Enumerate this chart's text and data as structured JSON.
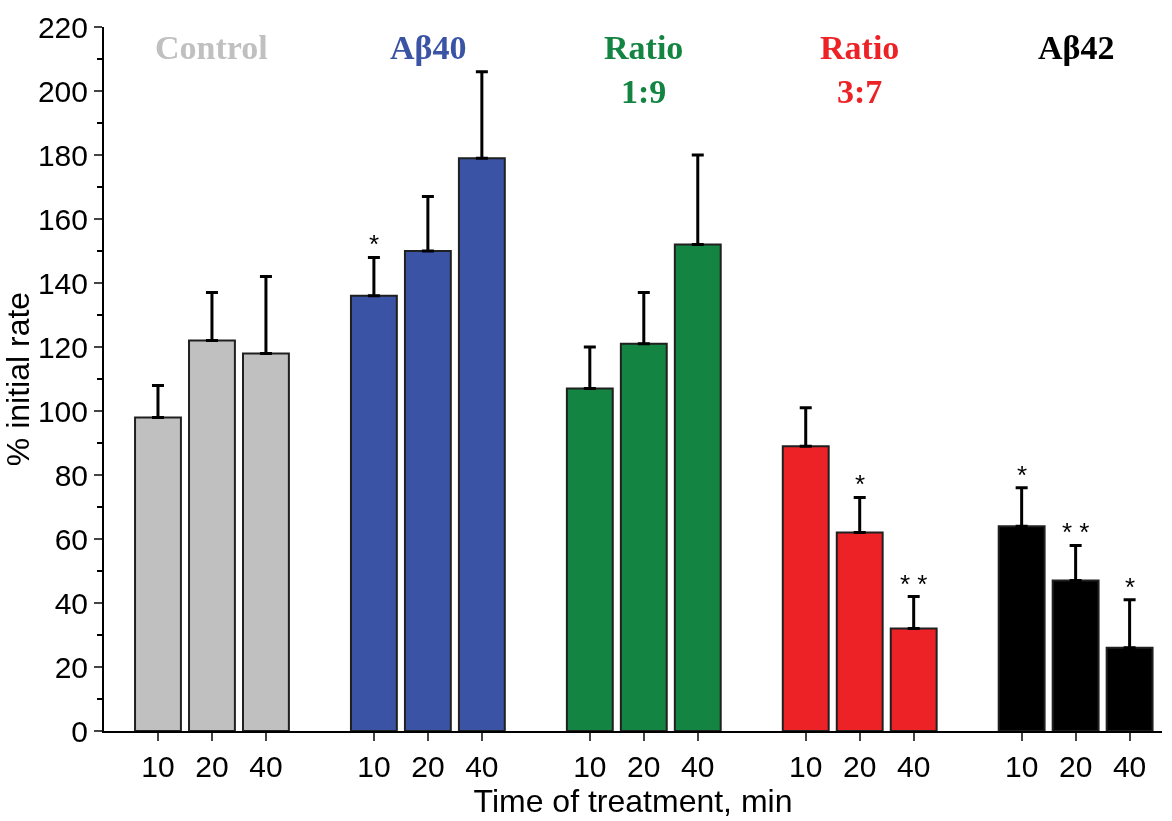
{
  "chart_data": {
    "type": "bar",
    "xlabel": "Time of treatment, min",
    "ylabel": "% initial rate",
    "categories": [
      "10",
      "20",
      "40",
      null,
      "10",
      "20",
      "40",
      null,
      "10",
      "20",
      "40",
      null,
      "10",
      "20",
      "40",
      null,
      "10",
      "20",
      "40"
    ],
    "series": [
      {
        "name": "Control",
        "color": "#c0c0c0",
        "values": [
          98,
          122,
          118,
          null,
          null,
          null,
          null,
          null,
          null,
          null,
          null,
          null,
          null,
          null,
          null,
          null,
          null,
          null,
          null
        ],
        "errors": [
          [
            98,
            108
          ],
          [
            122,
            137
          ],
          [
            118,
            142
          ],
          null,
          null,
          null,
          null,
          null,
          null,
          null,
          null,
          null,
          null,
          null,
          null,
          null,
          null,
          null,
          null
        ],
        "value_labels": [
          null,
          null,
          null,
          null,
          null,
          null,
          null,
          null,
          null,
          null,
          null,
          null,
          null,
          null,
          null,
          null,
          null,
          null,
          null
        ]
      },
      {
        "name": "Aβ40",
        "color": "#3a53a4",
        "values": [
          null,
          null,
          null,
          null,
          136,
          150,
          179,
          null,
          null,
          null,
          null,
          null,
          null,
          null,
          null,
          null,
          null,
          null,
          null
        ],
        "errors": [
          null,
          null,
          null,
          null,
          [
            136,
            148
          ],
          [
            150,
            167
          ],
          [
            179,
            206
          ],
          null,
          null,
          null,
          null,
          null,
          null,
          null,
          null,
          null,
          null,
          null,
          null
        ],
        "value_labels": [
          null,
          null,
          null,
          null,
          "*",
          null,
          null,
          null,
          null,
          null,
          null,
          null,
          null,
          null,
          null,
          null,
          null,
          null,
          null
        ]
      },
      {
        "name": "Ratio\n1:9",
        "color": "#138441",
        "values": [
          null,
          null,
          null,
          null,
          null,
          null,
          null,
          null,
          107,
          121,
          152,
          null,
          null,
          null,
          null,
          null,
          null,
          null,
          null
        ],
        "errors": [
          null,
          null,
          null,
          null,
          null,
          null,
          null,
          null,
          [
            107,
            120
          ],
          [
            121,
            137
          ],
          [
            152,
            180
          ],
          null,
          null,
          null,
          null,
          null,
          null,
          null,
          null
        ],
        "value_labels": [
          null,
          null,
          null,
          null,
          null,
          null,
          null,
          null,
          null,
          null,
          null,
          null,
          null,
          null,
          null,
          null,
          null,
          null,
          null
        ]
      },
      {
        "name": "Ratio\n3:7",
        "color": "#ec2227",
        "values": [
          null,
          null,
          null,
          null,
          null,
          null,
          null,
          null,
          null,
          null,
          null,
          null,
          89,
          62,
          32,
          null,
          null,
          null,
          null
        ],
        "errors": [
          null,
          null,
          null,
          null,
          null,
          null,
          null,
          null,
          null,
          null,
          null,
          null,
          [
            89,
            101
          ],
          [
            62,
            73
          ],
          [
            32,
            42
          ],
          null,
          null,
          null,
          null
        ],
        "value_labels": [
          null,
          null,
          null,
          null,
          null,
          null,
          null,
          null,
          null,
          null,
          null,
          null,
          null,
          "*",
          "* *",
          null,
          null,
          null,
          null
        ]
      },
      {
        "name": "Aβ42",
        "color": "#000000",
        "values": [
          null,
          null,
          null,
          null,
          null,
          null,
          null,
          null,
          null,
          null,
          null,
          null,
          null,
          null,
          null,
          null,
          64,
          47,
          26
        ],
        "errors": [
          null,
          null,
          null,
          null,
          null,
          null,
          null,
          null,
          null,
          null,
          null,
          null,
          null,
          null,
          null,
          null,
          [
            64,
            76
          ],
          [
            47,
            58
          ],
          [
            26,
            41
          ]
        ],
        "value_labels": [
          null,
          null,
          null,
          null,
          null,
          null,
          null,
          null,
          null,
          null,
          null,
          null,
          null,
          null,
          null,
          null,
          "*",
          "* *",
          "*"
        ]
      }
    ],
    "ylim": [
      0,
      220
    ],
    "yticks": [
      0,
      20,
      40,
      60,
      80,
      100,
      120,
      140,
      160,
      180,
      200,
      220
    ]
  }
}
